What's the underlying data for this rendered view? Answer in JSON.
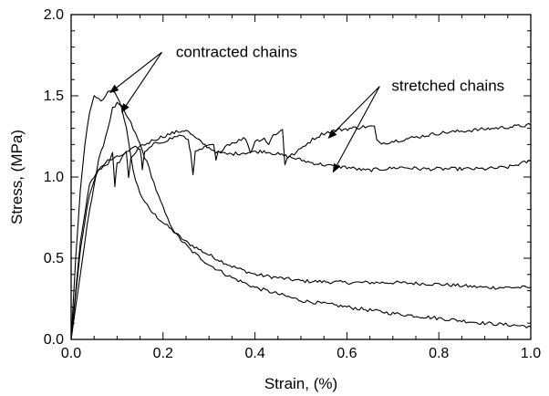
{
  "chart_data": {
    "type": "line",
    "xlabel": "Strain, (%)",
    "ylabel": "Stress, (MPa)",
    "xlim": [
      0.0,
      1.0
    ],
    "ylim": [
      0.0,
      2.0
    ],
    "xticks": [
      "0.0",
      "0.2",
      "0.4",
      "0.6",
      "0.8",
      "1.0"
    ],
    "yticks": [
      "0.0",
      "0.5",
      "1.0",
      "1.5",
      "2.0"
    ],
    "grid": false,
    "series": [
      {
        "points": [
          [
            0,
            0
          ],
          [
            0.01,
            0.5
          ],
          [
            0.02,
            0.92
          ],
          [
            0.03,
            1.2
          ],
          [
            0.04,
            1.4
          ],
          [
            0.05,
            1.49
          ],
          [
            0.06,
            1.48
          ],
          [
            0.07,
            1.47
          ],
          [
            0.08,
            1.52
          ],
          [
            0.09,
            1.53
          ],
          [
            0.1,
            1.5
          ],
          [
            0.11,
            1.43
          ],
          [
            0.12,
            1.3
          ],
          [
            0.13,
            1.12
          ],
          [
            0.14,
            0.98
          ],
          [
            0.15,
            0.9
          ],
          [
            0.17,
            0.8
          ],
          [
            0.2,
            0.72
          ],
          [
            0.25,
            0.6
          ],
          [
            0.3,
            0.52
          ],
          [
            0.35,
            0.45
          ],
          [
            0.4,
            0.4
          ],
          [
            0.5,
            0.36
          ],
          [
            0.6,
            0.35
          ],
          [
            0.7,
            0.35
          ],
          [
            0.8,
            0.34
          ],
          [
            0.9,
            0.32
          ],
          [
            1.0,
            0.32
          ]
        ]
      },
      {
        "points": [
          [
            0,
            0
          ],
          [
            0.02,
            0.4
          ],
          [
            0.04,
            0.8
          ],
          [
            0.06,
            1.1
          ],
          [
            0.08,
            1.3
          ],
          [
            0.09,
            1.42
          ],
          [
            0.1,
            1.45
          ],
          [
            0.11,
            1.43
          ],
          [
            0.13,
            1.33
          ],
          [
            0.15,
            1.2
          ],
          [
            0.17,
            1.05
          ],
          [
            0.19,
            0.88
          ],
          [
            0.21,
            0.74
          ],
          [
            0.23,
            0.64
          ],
          [
            0.26,
            0.55
          ],
          [
            0.3,
            0.46
          ],
          [
            0.35,
            0.38
          ],
          [
            0.4,
            0.32
          ],
          [
            0.45,
            0.28
          ],
          [
            0.5,
            0.24
          ],
          [
            0.6,
            0.2
          ],
          [
            0.7,
            0.16
          ],
          [
            0.8,
            0.13
          ],
          [
            0.9,
            0.1
          ],
          [
            1.0,
            0.08
          ]
        ]
      },
      {
        "points": [
          [
            0,
            0
          ],
          [
            0.02,
            0.6
          ],
          [
            0.04,
            0.95
          ],
          [
            0.06,
            1.05
          ],
          [
            0.08,
            1.1
          ],
          [
            0.1,
            1.12
          ],
          [
            0.12,
            1.15
          ],
          [
            0.14,
            1.18
          ],
          [
            0.16,
            1.2
          ],
          [
            0.18,
            1.23
          ],
          [
            0.2,
            1.25
          ],
          [
            0.22,
            1.27
          ],
          [
            0.25,
            1.29
          ],
          [
            0.27,
            1.24
          ],
          [
            0.3,
            1.18
          ],
          [
            0.32,
            1.15
          ],
          [
            0.34,
            1.14
          ],
          [
            0.38,
            1.15
          ],
          [
            0.42,
            1.16
          ],
          [
            0.45,
            1.14
          ],
          [
            0.48,
            1.12
          ],
          [
            0.52,
            1.09
          ],
          [
            0.56,
            1.07
          ],
          [
            0.6,
            1.06
          ],
          [
            0.64,
            1.04
          ],
          [
            0.68,
            1.05
          ],
          [
            0.72,
            1.06
          ],
          [
            0.76,
            1.05
          ],
          [
            0.8,
            1.05
          ],
          [
            0.85,
            1.05
          ],
          [
            0.9,
            1.05
          ],
          [
            0.95,
            1.06
          ],
          [
            1.0,
            1.1
          ]
        ]
      },
      {
        "points": [
          [
            0,
            0
          ],
          [
            0.02,
            0.55
          ],
          [
            0.04,
            0.9
          ],
          [
            0.06,
            1.05
          ],
          [
            0.08,
            1.08
          ],
          [
            0.09,
            1.15
          ],
          [
            0.095,
            0.95
          ],
          [
            0.1,
            1.08
          ],
          [
            0.12,
            1.15
          ],
          [
            0.125,
            1.0
          ],
          [
            0.13,
            1.12
          ],
          [
            0.15,
            1.18
          ],
          [
            0.155,
            1.05
          ],
          [
            0.16,
            1.15
          ],
          [
            0.18,
            1.2
          ],
          [
            0.2,
            1.22
          ],
          [
            0.22,
            1.24
          ],
          [
            0.24,
            1.26
          ],
          [
            0.255,
            1.22
          ],
          [
            0.26,
            1.15
          ],
          [
            0.265,
            1.02
          ],
          [
            0.27,
            1.15
          ],
          [
            0.29,
            1.18
          ],
          [
            0.31,
            1.2
          ],
          [
            0.315,
            1.1
          ],
          [
            0.32,
            1.15
          ],
          [
            0.34,
            1.2
          ],
          [
            0.36,
            1.22
          ],
          [
            0.38,
            1.24
          ],
          [
            0.39,
            1.15
          ],
          [
            0.4,
            1.22
          ],
          [
            0.42,
            1.24
          ],
          [
            0.43,
            1.2
          ],
          [
            0.44,
            1.26
          ],
          [
            0.46,
            1.29
          ],
          [
            0.465,
            1.08
          ],
          [
            0.47,
            1.12
          ],
          [
            0.49,
            1.15
          ],
          [
            0.51,
            1.2
          ],
          [
            0.53,
            1.24
          ],
          [
            0.55,
            1.27
          ],
          [
            0.58,
            1.29
          ],
          [
            0.61,
            1.3
          ],
          [
            0.64,
            1.31
          ],
          [
            0.66,
            1.31
          ],
          [
            0.665,
            1.22
          ],
          [
            0.68,
            1.21
          ],
          [
            0.72,
            1.23
          ],
          [
            0.76,
            1.25
          ],
          [
            0.8,
            1.27
          ],
          [
            0.84,
            1.28
          ],
          [
            0.88,
            1.29
          ],
          [
            0.92,
            1.3
          ],
          [
            0.96,
            1.31
          ],
          [
            1.0,
            1.32
          ]
        ]
      }
    ],
    "annotations": [
      {
        "text": "contracted chains",
        "x": 0.36,
        "y": 1.74,
        "arrow_targets": [
          [
            0.085,
            1.52
          ],
          [
            0.11,
            1.4
          ]
        ]
      },
      {
        "text": "stretched chains",
        "x": 0.82,
        "y": 1.53,
        "arrow_targets": [
          [
            0.56,
            1.24
          ],
          [
            0.57,
            1.03
          ]
        ]
      }
    ]
  }
}
